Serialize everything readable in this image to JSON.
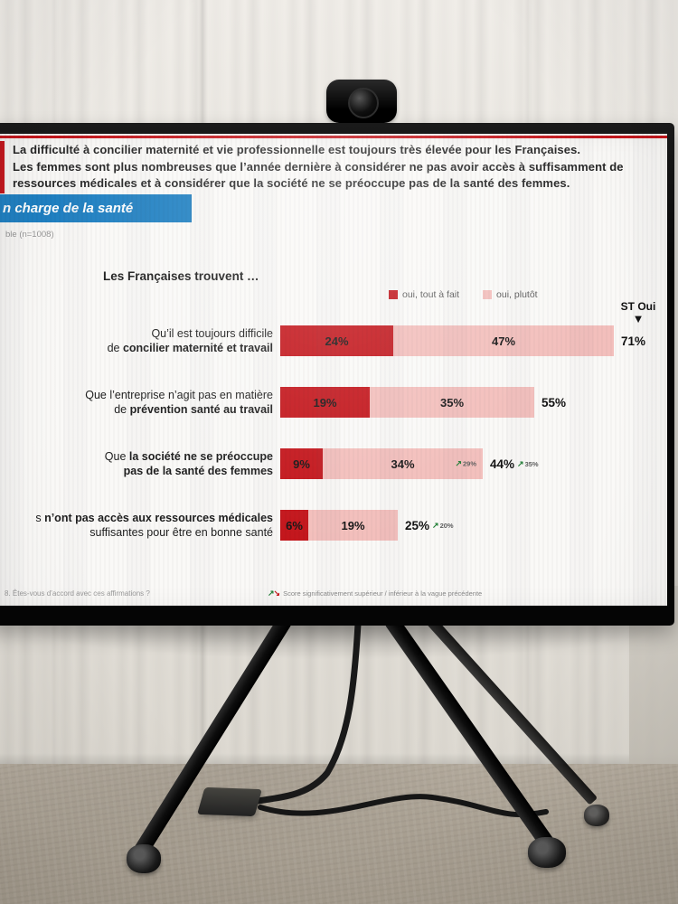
{
  "colors": {
    "dark_red": "#c4161c",
    "pink": "#f3bfbc",
    "blue": "#1f80c2",
    "green": "#1e7e34"
  },
  "icons": {
    "up_arrow": "↗",
    "down_arrow": "↘",
    "st_marker": "▼"
  },
  "slide": {
    "headline": {
      "line1": "La difficulté à concilier maternité et vie professionnelle est toujours très élevée pour les Françaises.",
      "line2": "Les femmes sont plus nombreuses que l’année dernière à considérer ne pas avoir accès à suffisamment de",
      "line3": "ressources médicales et à considérer que la société ne se préoccupe pas de la santé des femmes."
    },
    "section_tab": "n charge de la santé",
    "base_note": "ble (n=1008)",
    "chart_intro": "Les Françaises trouvent …",
    "legend": {
      "yes_strong": "oui, tout à fait",
      "yes_soft": "oui, plutôt",
      "st_label": "ST Oui"
    },
    "footnote_question": "8. Êtes-vous d’accord avec ces affirmations ?",
    "footnote_significance": "Score significativement supérieur / inférieur à la vague précédente"
  },
  "chart": {
    "rows": [
      {
        "l1pre": "Qu’il est toujours difficile",
        "l1bold": "",
        "l2pre": "de ",
        "l2bold": "concilier maternité et travail",
        "v1": "24%",
        "v2": "47%",
        "total": "71%",
        "seg_note": "",
        "total_note": ""
      },
      {
        "l1pre": "Que l’entreprise n’agit pas en matière",
        "l1bold": "",
        "l2pre": "de ",
        "l2bold": "prévention santé au travail",
        "v1": "19%",
        "v2": "35%",
        "total": "55%",
        "seg_note": "",
        "total_note": ""
      },
      {
        "l1pre": "Que ",
        "l1bold": "la société ne se préoccupe",
        "l2pre": "",
        "l2bold": "pas de la santé des femmes",
        "v1": "9%",
        "v2": "34%",
        "total": "44%",
        "seg_note": "29%",
        "total_note": "35%"
      },
      {
        "l1pre": "s ",
        "l1bold": "n’ont pas accès aux ressources médicales",
        "l2pre": "suffisantes pour être en bonne santé",
        "l2bold": "",
        "v1": "6%",
        "v2": "19%",
        "total": "25%",
        "seg_note": "",
        "total_note": "20%"
      }
    ]
  },
  "chart_data": {
    "type": "bar",
    "orientation": "horizontal",
    "title": "Les Françaises trouvent …",
    "unit": "%",
    "legend": [
      "oui, tout à fait",
      "oui, plutôt"
    ],
    "legend_position": "top",
    "st_column_label": "ST Oui",
    "categories": [
      "Qu’il est toujours difficile de concilier maternité et travail",
      "Que l’entreprise n’agit pas en matière de prévention santé au travail",
      "Que la société ne se préoccupe pas de la santé des femmes",
      "s n’ont pas accès aux ressources médicales suffisantes pour être en bonne santé"
    ],
    "series": [
      {
        "name": "oui, tout à fait",
        "color": "#c4161c",
        "values": [
          24,
          19,
          9,
          6
        ]
      },
      {
        "name": "oui, plutôt",
        "color": "#f3bfbc",
        "values": [
          47,
          35,
          34,
          19
        ]
      }
    ],
    "totals": [
      71,
      55,
      44,
      25
    ],
    "xlim": [
      0,
      100
    ],
    "grid": false,
    "previous_wave_notes": [
      {
        "category_index": 2,
        "segment": "oui, plutôt",
        "previous": 29,
        "direction": "up"
      },
      {
        "category_index": 2,
        "segment": "ST Oui",
        "previous": 35,
        "direction": "up"
      },
      {
        "category_index": 3,
        "segment": "ST Oui",
        "previous": 20,
        "direction": "up"
      }
    ],
    "sample_note": "ble (n=1008)"
  }
}
